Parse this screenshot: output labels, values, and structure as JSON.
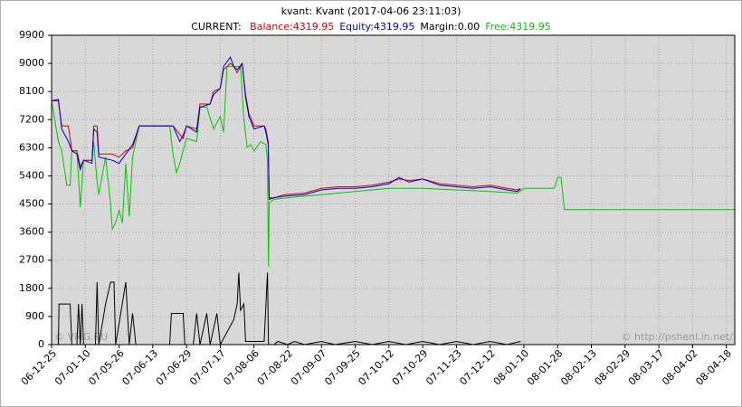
{
  "chart_data": {
    "type": "line",
    "title": "kvant: Kvant (2017-04-06 23:11:03)",
    "subtitle": "CURRENT:",
    "watermarks": [
      "© VMG.RU",
      "© http://pshenl.in.net/"
    ],
    "grid": true,
    "background": "#d8d8d8",
    "xlim": [
      0,
      20.25
    ],
    "xticks": [
      {
        "value": 0,
        "label": "06-12-25"
      },
      {
        "value": 1,
        "label": "07-01-10"
      },
      {
        "value": 2,
        "label": "07-05-26"
      },
      {
        "value": 3,
        "label": "07-06-13"
      },
      {
        "value": 4,
        "label": "07-06-29"
      },
      {
        "value": 5,
        "label": "07-07-17"
      },
      {
        "value": 6,
        "label": "07-08-06"
      },
      {
        "value": 7,
        "label": "07-08-22"
      },
      {
        "value": 8,
        "label": "07-09-07"
      },
      {
        "value": 9,
        "label": "07-09-25"
      },
      {
        "value": 10,
        "label": "07-10-12"
      },
      {
        "value": 11,
        "label": "07-10-29"
      },
      {
        "value": 12,
        "label": "07-11-23"
      },
      {
        "value": 13,
        "label": "07-12-12"
      },
      {
        "value": 14,
        "label": "08-01-10"
      },
      {
        "value": 15,
        "label": "08-01-28"
      },
      {
        "value": 16,
        "label": "08-02-13"
      },
      {
        "value": 17,
        "label": "08-02-29"
      },
      {
        "value": 18,
        "label": "08-03-17"
      },
      {
        "value": 19,
        "label": "08-04-02"
      },
      {
        "value": 20,
        "label": "08-04-18"
      }
    ],
    "ylim": [
      0,
      9900
    ],
    "yticks": [
      0,
      900,
      1800,
      2700,
      3600,
      4500,
      5400,
      6300,
      7200,
      8100,
      9000,
      9900
    ],
    "series": [
      {
        "name": "Balance:4319.95",
        "color": "#d40000",
        "x": [
          0,
          0.2,
          0.3,
          0.5,
          0.6,
          0.75,
          0.85,
          0.95,
          1.2,
          1.25,
          1.35,
          1.4,
          1.8,
          2.0,
          2.2,
          2.4,
          2.6,
          3.6,
          3.9,
          4.0,
          4.3,
          4.4,
          4.7,
          4.8,
          5.0,
          5.1,
          5.3,
          5.4,
          5.5,
          5.65,
          5.75,
          5.85,
          6.0,
          6.3,
          6.35,
          6.42,
          6.45,
          6.6,
          6.9,
          7.5,
          8.0,
          8.5,
          9.0,
          9.5,
          10.0,
          10.3,
          10.6,
          11.0,
          11.5,
          12.0,
          12.5,
          13.0,
          13.5,
          13.8,
          13.9
        ],
        "values": [
          7800,
          7800,
          7000,
          7000,
          6200,
          6200,
          5700,
          5900,
          5900,
          7000,
          7000,
          6100,
          6100,
          6000,
          6200,
          6300,
          7000,
          7000,
          6600,
          7000,
          6900,
          7700,
          7700,
          8100,
          8200,
          8800,
          9000,
          8900,
          8700,
          9000,
          8000,
          7400,
          7000,
          7000,
          6900,
          6500,
          4700,
          4700,
          4800,
          4850,
          5000,
          5050,
          5050,
          5100,
          5200,
          5300,
          5250,
          5300,
          5150,
          5100,
          5050,
          5100,
          5000,
          4950,
          5000
        ]
      },
      {
        "name": "Equity:4319.95",
        "color": "#0000d0",
        "x": [
          0,
          0.2,
          0.3,
          0.5,
          0.6,
          0.75,
          0.85,
          0.95,
          1.2,
          1.25,
          1.35,
          1.4,
          1.8,
          2.0,
          2.2,
          2.4,
          2.6,
          3.6,
          3.8,
          3.9,
          4.0,
          4.3,
          4.4,
          4.7,
          4.8,
          5.0,
          5.1,
          5.3,
          5.4,
          5.5,
          5.65,
          5.75,
          5.85,
          6.0,
          6.3,
          6.35,
          6.42,
          6.45,
          6.6,
          6.9,
          7.5,
          8.0,
          8.5,
          9.0,
          9.5,
          10.0,
          10.3,
          10.6,
          11.0,
          11.5,
          12.0,
          12.5,
          13.0,
          13.5,
          13.8,
          13.9
        ],
        "values": [
          7800,
          7850,
          6900,
          6500,
          6200,
          6100,
          5600,
          5900,
          5800,
          6900,
          6800,
          6000,
          5900,
          5800,
          6100,
          6400,
          7000,
          7000,
          6500,
          6700,
          7000,
          6800,
          7600,
          7700,
          8000,
          8200,
          8900,
          9200,
          8900,
          8800,
          9000,
          7900,
          7300,
          6900,
          7000,
          6800,
          6400,
          4650,
          4700,
          4750,
          4800,
          4950,
          5000,
          5000,
          5050,
          5150,
          5350,
          5200,
          5300,
          5100,
          5050,
          5000,
          5050,
          4950,
          4900,
          4980
        ]
      },
      {
        "name": "Margin:0.00",
        "color": "#000000",
        "x": [
          0.2,
          0.22,
          0.55,
          0.6,
          0.75,
          0.8,
          0.85,
          0.9,
          0.95,
          1.3,
          1.35,
          1.4,
          1.6,
          1.75,
          1.85,
          1.9,
          2.2,
          2.3,
          2.4,
          2.5,
          3.5,
          3.55,
          3.9,
          3.95,
          4.2,
          4.3,
          4.4,
          4.6,
          4.7,
          4.9,
          5.0,
          5.4,
          5.5,
          5.55,
          5.6,
          5.7,
          5.75,
          6.3,
          6.4,
          6.43,
          6.6,
          6.7,
          7.0,
          7.2,
          7.5,
          8.0,
          8.4,
          9.0,
          9.5,
          10.0,
          10.5,
          11.0,
          11.5,
          12.0,
          12.5,
          13.0,
          13.5,
          13.9
        ],
        "values": [
          0,
          1300,
          1300,
          0,
          0,
          1300,
          0,
          1300,
          0,
          0,
          2000,
          0,
          1300,
          2000,
          2000,
          0,
          2000,
          0,
          1000,
          0,
          0,
          1000,
          1000,
          0,
          0,
          1000,
          0,
          1000,
          0,
          1000,
          0,
          800,
          1300,
          2300,
          1100,
          1300,
          100,
          100,
          2300,
          0,
          0,
          100,
          0,
          100,
          0,
          100,
          0,
          100,
          0,
          100,
          0,
          100,
          0,
          100,
          0,
          100,
          0,
          100
        ]
      },
      {
        "name": "Free:4319.95",
        "color": "#00c800",
        "x": [
          0,
          0.2,
          0.3,
          0.45,
          0.55,
          0.6,
          0.75,
          0.85,
          0.95,
          1.2,
          1.25,
          1.35,
          1.4,
          1.6,
          1.75,
          1.8,
          1.9,
          2.0,
          2.1,
          2.2,
          2.3,
          2.4,
          2.6,
          3.5,
          3.6,
          3.7,
          3.8,
          4.0,
          4.3,
          4.4,
          4.6,
          4.8,
          5.0,
          5.1,
          5.2,
          5.6,
          5.7,
          5.8,
          5.9,
          6.0,
          6.2,
          6.35,
          6.4,
          6.43,
          6.45,
          6.6,
          7.0,
          8.0,
          9.0,
          10.0,
          11.0,
          12.0,
          13.0,
          13.8,
          14.0,
          14.9,
          15.0,
          15.1,
          15.2,
          20.25
        ],
        "values": [
          7800,
          6500,
          6200,
          5100,
          5100,
          6200,
          6200,
          4400,
          5900,
          5900,
          6500,
          5200,
          4800,
          6000,
          4500,
          3700,
          3900,
          4300,
          3900,
          5800,
          4100,
          6000,
          7000,
          7000,
          6100,
          5500,
          5800,
          6600,
          6500,
          7600,
          7600,
          6900,
          7300,
          6800,
          8900,
          8900,
          7200,
          6300,
          6400,
          6200,
          6500,
          6400,
          5900,
          2500,
          4550,
          4650,
          4700,
          4800,
          4900,
          5000,
          5000,
          4950,
          4900,
          4850,
          5000,
          5000,
          5350,
          5350,
          4320,
          4320
        ]
      }
    ]
  }
}
